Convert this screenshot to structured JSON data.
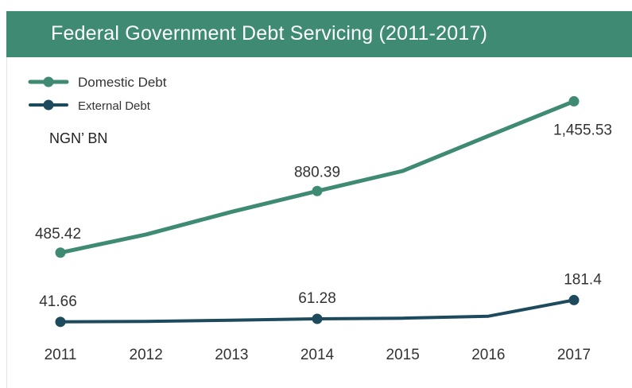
{
  "title": "Federal Government Debt Servicing (2011-2017)",
  "unit": "NGN’ BN",
  "colors": {
    "domestic": "#3e8a73",
    "external": "#1d4a5c",
    "title_bg": "#3e8a73"
  },
  "chart_data": {
    "type": "line",
    "title": "Federal Government Debt Servicing (2011-2017)",
    "ylabel": "NGN’ BN",
    "xlabel": "",
    "x": [
      "2011",
      "2012",
      "2013",
      "2014",
      "2015",
      "2016",
      "2017"
    ],
    "ylim": [
      0,
      1600
    ],
    "grid": false,
    "legend": "top-left",
    "series": [
      {
        "name": "Domestic Debt",
        "color": "#3e8a73",
        "values": [
          485.42,
          602,
          747,
          880.39,
          1009,
          1234,
          1455.53
        ],
        "labels": [
          "485.42",
          null,
          null,
          "880.39",
          null,
          null,
          "1,455.53"
        ],
        "label_position": "below"
      },
      {
        "name": "External Debt",
        "color": "#1d4a5c",
        "values": [
          41.66,
          45,
          52,
          61.28,
          65,
          78,
          181.4
        ],
        "labels": [
          "41.66",
          null,
          null,
          "61.28",
          null,
          null,
          "181.4"
        ],
        "label_position": "above"
      }
    ]
  }
}
